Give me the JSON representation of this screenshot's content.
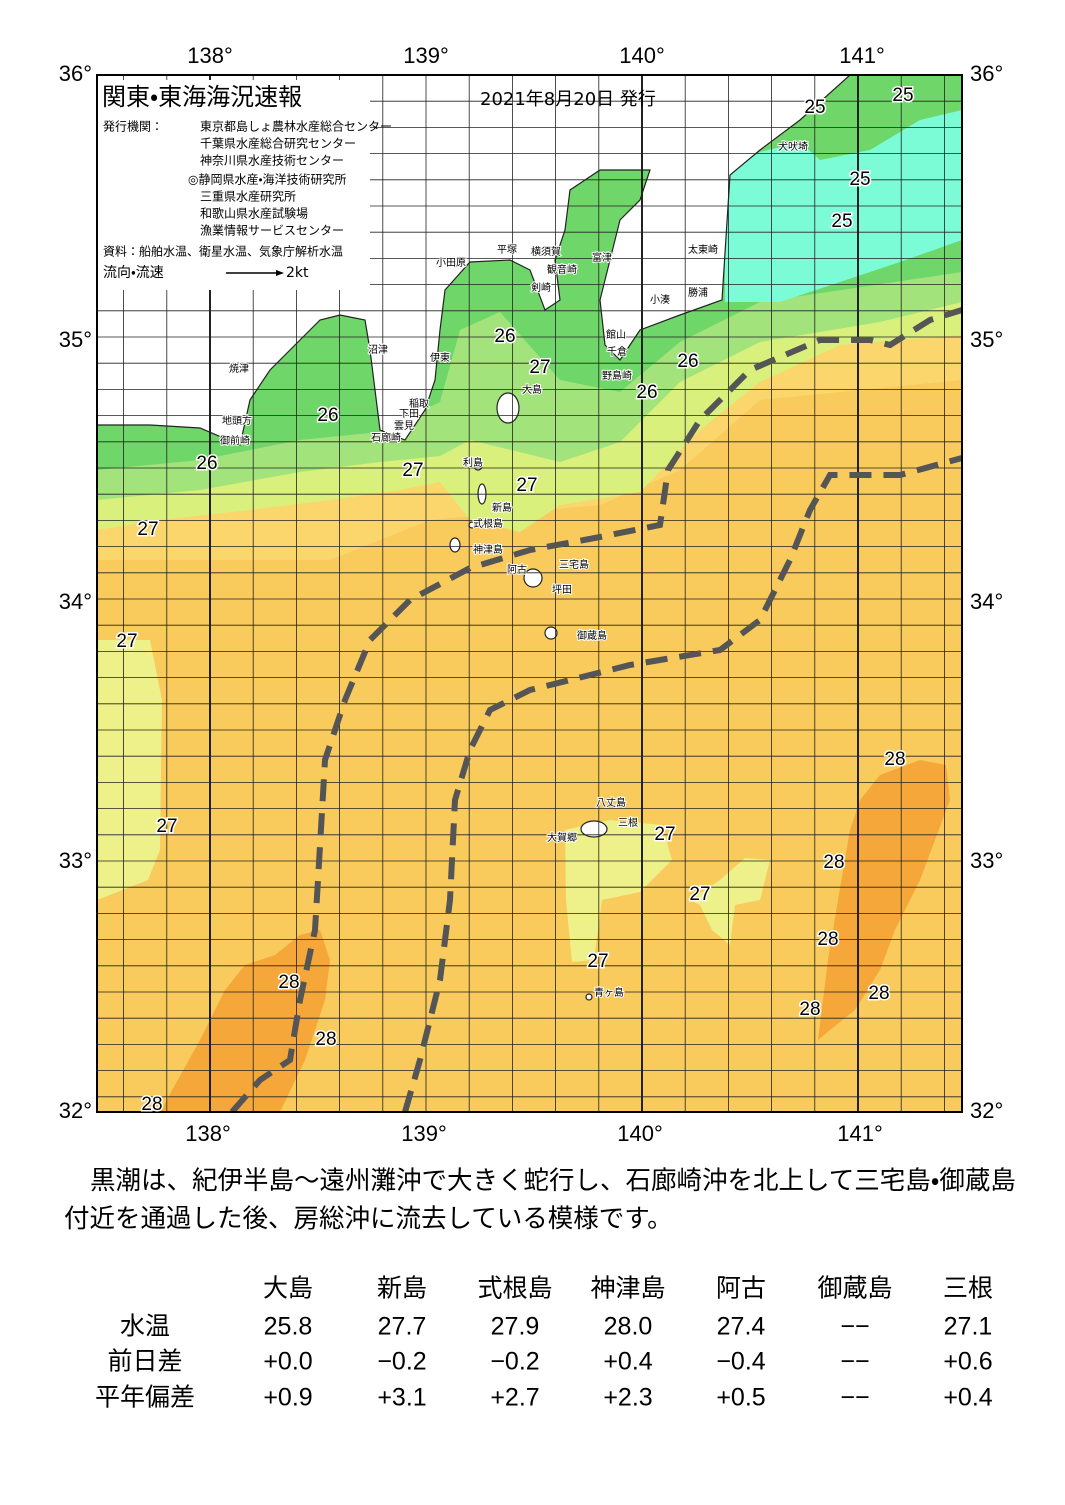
{
  "map": {
    "title": "関東・東海海況速報",
    "date": "2021年8月20日 発行",
    "publisher_label": "発行機関：",
    "publishers": [
      "東京都島しょ農林水産総合センター",
      "千葉県水産総合研究センター",
      "神奈川県水産技術センター",
      "◎静岡県水産・海洋技術研究所",
      "三重県水産研究所",
      "和歌山県水産試験場",
      "漁業情報サービスセンター"
    ],
    "sources": "資料：船舶水温、衛星水温、気象庁解析水温",
    "legend_label": "流向・流速",
    "legend_scale": "2kt",
    "lon_labels": [
      "138°",
      "139°",
      "140°",
      "141°"
    ],
    "lat_labels": [
      "36°",
      "35°",
      "34°",
      "33°",
      "32°"
    ],
    "temperature_labels": [
      "25",
      "25",
      "25",
      "25",
      "26",
      "27",
      "26",
      "26",
      "26",
      "26",
      "27",
      "27",
      "27",
      "27",
      "27",
      "27",
      "27",
      "27",
      "28",
      "28",
      "28",
      "28",
      "28",
      "28",
      "28",
      "28"
    ],
    "place_names": [
      "犬吠埼",
      "太東崎",
      "勝浦",
      "小湊",
      "館山",
      "千倉",
      "野島崎",
      "富津",
      "横須賀",
      "観音崎",
      "剣崎",
      "平塚",
      "小田原",
      "沼津",
      "伊東",
      "焼津",
      "稲取",
      "下田",
      "雲見",
      "石廊崎",
      "地頭方",
      "御前崎",
      "大島",
      "利島",
      "新島",
      "式根島",
      "神津島",
      "阿古",
      "三宅島",
      "坪田",
      "御蔵島",
      "八丈島",
      "三根",
      "大賀郷",
      "青ヶ島"
    ]
  },
  "summary": "黒潮は、紀伊半島～遠州灘沖で大きく蛇行し、石廊崎沖を北上して三宅島・御蔵島付近を通過した後、房総沖に流去している模様です。",
  "table": {
    "columns": [
      "大島",
      "新島",
      "式根島",
      "神津島",
      "阿古",
      "御蔵島",
      "三根"
    ],
    "rows": [
      {
        "label": "水温",
        "cells": [
          "25.8",
          "27.7",
          "27.9",
          "28.0",
          "27.4",
          "−−",
          "27.1"
        ]
      },
      {
        "label": "前日差",
        "cells": [
          "+0.0",
          "−0.2",
          "−0.2",
          "+0.4",
          "−0.4",
          "−−",
          "+0.6"
        ]
      },
      {
        "label": "平年偏差",
        "cells": [
          "+0.9",
          "+3.1",
          "+2.7",
          "+2.3",
          "+0.5",
          "−−",
          "+0.4"
        ]
      }
    ]
  }
}
